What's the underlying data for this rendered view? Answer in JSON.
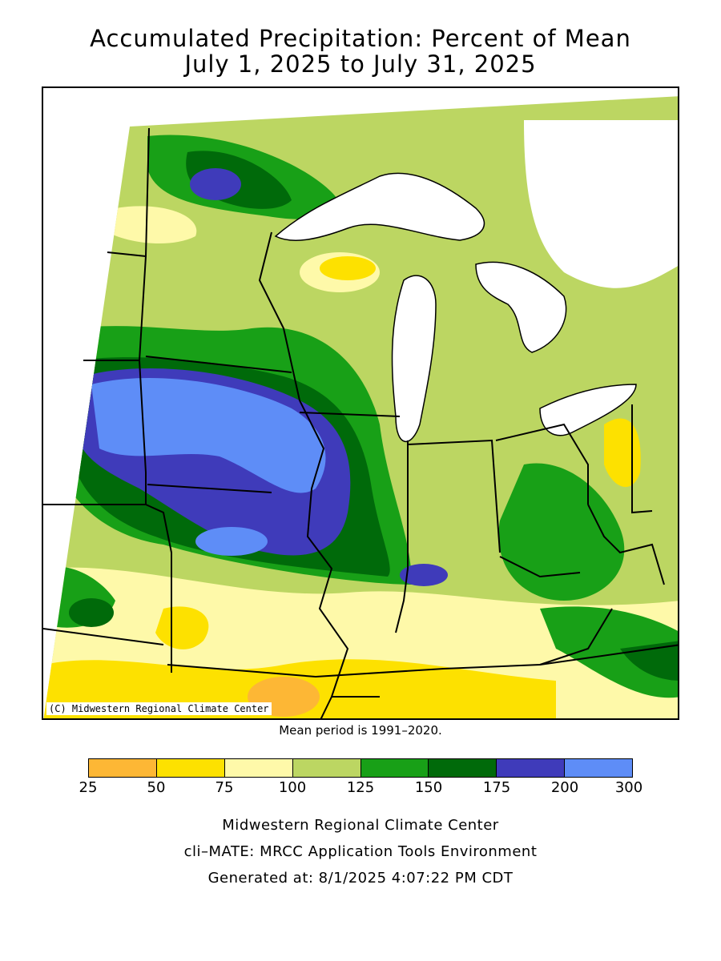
{
  "title": {
    "line1": "Accumulated Precipitation: Percent of Mean",
    "line2": "July 1, 2025 to July 31, 2025"
  },
  "map": {
    "copyright": "(C) Midwestern Regional Climate Center",
    "mean_note": "Mean period is 1991–2020."
  },
  "legend": {
    "ticks": [
      "25",
      "50",
      "75",
      "100",
      "125",
      "150",
      "175",
      "200",
      "300"
    ],
    "colors": [
      "#fdb735",
      "#fde100",
      "#fef9a9",
      "#bcd662",
      "#18a017",
      "#006a0a",
      "#3f3bba",
      "#5e8df7"
    ]
  },
  "footer": {
    "line1": "Midwestern Regional Climate Center",
    "line2": "cli–MATE: MRCC Application Tools Environment",
    "line3": "Generated at: 8/1/2025 4:07:22 PM CDT"
  }
}
